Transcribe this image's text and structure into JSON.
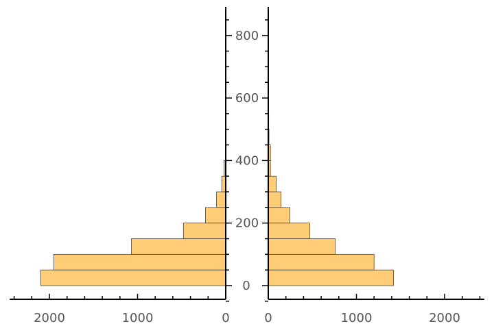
{
  "chart_data": {
    "type": "bar",
    "orientation": "horizontal",
    "layout": "back-to-back pyramid",
    "bin_width": 50,
    "bins": [
      0,
      50,
      100,
      150,
      200,
      250,
      300,
      350,
      400,
      450,
      500,
      550,
      600,
      650,
      700,
      750,
      800,
      850
    ],
    "series": [
      {
        "side": "left",
        "values": [
          2100,
          1950,
          1070,
          480,
          230,
          105,
          45,
          20,
          0,
          0,
          0,
          0,
          0,
          0,
          0,
          0,
          0,
          0
        ]
      },
      {
        "side": "right",
        "values": [
          1420,
          1200,
          760,
          470,
          245,
          145,
          90,
          25,
          25,
          8,
          5,
          0,
          0,
          0,
          0,
          0,
          0,
          0
        ]
      }
    ],
    "y_axis": {
      "range": [
        -50,
        890
      ],
      "ticks": [
        0,
        200,
        400,
        600,
        800
      ],
      "tick_labels": [
        "0",
        "200",
        "400",
        "600",
        "800"
      ]
    },
    "left_x_axis": {
      "range": [
        0,
        2450
      ],
      "ticks": [
        0,
        1000,
        2000
      ],
      "tick_labels": [
        "0",
        "1000",
        "2000"
      ],
      "direction": "reversed"
    },
    "right_x_axis": {
      "range": [
        0,
        2450
      ],
      "ticks": [
        0,
        1000,
        2000
      ],
      "tick_labels": [
        "0",
        "1000",
        "2000"
      ]
    },
    "colors": {
      "bar_fill": "#FFCC77",
      "bar_stroke": "#444444",
      "axis": "#000000",
      "tick_text": "#555555"
    },
    "grid": false,
    "legend": "none"
  }
}
